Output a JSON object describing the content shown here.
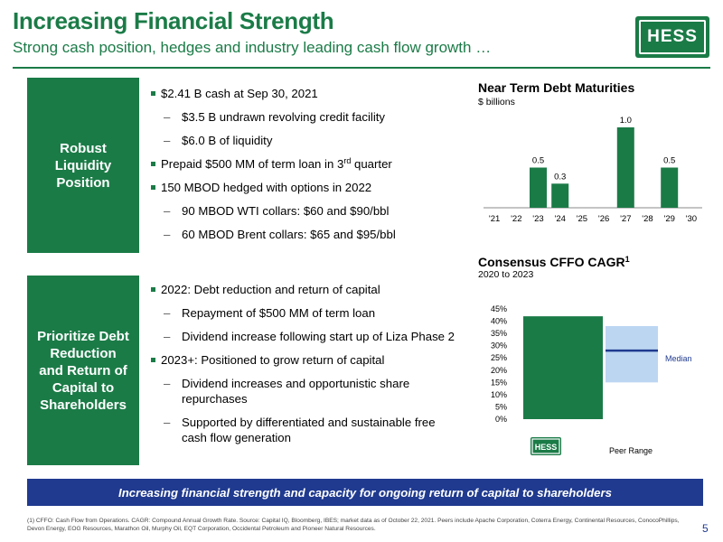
{
  "header": {
    "title": "Increasing Financial Strength",
    "subtitle": "Strong cash position, hedges and industry leading cash flow growth …",
    "logo_text": "HESS"
  },
  "section1": {
    "label": "Robust\nLiquidity\nPosition",
    "bullets": [
      {
        "level": 1,
        "text": "$2.41 B cash at Sep 30, 2021"
      },
      {
        "level": 2,
        "text": "$3.5 B undrawn revolving credit facility"
      },
      {
        "level": 2,
        "text": "$6.0 B of liquidity"
      },
      {
        "level": 1,
        "text_pre": "Prepaid $500 MM of term loan in 3",
        "sup": "rd",
        "text_post": " quarter"
      },
      {
        "level": 1,
        "text": "150 MBOD hedged with options in 2022"
      },
      {
        "level": 2,
        "text": "90 MBOD WTI collars: $60 and $90/bbl"
      },
      {
        "level": 2,
        "text": "60 MBOD Brent collars: $65 and $95/bbl"
      }
    ]
  },
  "section2": {
    "label": "Prioritize Debt\nReduction\nand Return of\nCapital to\nShareholders",
    "bullets": [
      {
        "level": 1,
        "text": "2022:  Debt reduction and return of capital"
      },
      {
        "level": 2,
        "text": "Repayment of $500 MM of term loan"
      },
      {
        "level": 2,
        "text": "Dividend increase following start up of Liza Phase 2"
      },
      {
        "level": 1,
        "text": "2023+:  Positioned to grow return of capital"
      },
      {
        "level": 2,
        "text": "Dividend increases and opportunistic share repurchases"
      },
      {
        "level": 2,
        "text": "Supported by differentiated and sustainable free cash flow generation"
      }
    ]
  },
  "chart_data": [
    {
      "type": "bar",
      "title": "Near Term Debt Maturities",
      "subtitle": "$ billions",
      "categories": [
        "'21",
        "'22",
        "'23",
        "'24",
        "'25",
        "'26",
        "'27",
        "'28",
        "'29",
        "'30"
      ],
      "values": [
        0,
        0,
        0.5,
        0.3,
        0,
        0,
        1.0,
        0,
        0.5,
        0
      ],
      "labels": [
        "",
        "",
        "0.5",
        "0.3",
        "",
        "",
        "1.0",
        "",
        "0.5",
        ""
      ],
      "ylim": [
        0,
        1.0
      ],
      "bar_color": "#1b7b47"
    },
    {
      "type": "bar",
      "title": "Consensus CFFO CAGR",
      "title_sup": "1",
      "subtitle": "2020 to 2023",
      "yticks": [
        "0%",
        "5%",
        "10%",
        "15%",
        "20%",
        "25%",
        "30%",
        "35%",
        "40%",
        "45%"
      ],
      "ylim": [
        0,
        45
      ],
      "hess_value": 42,
      "hess_label": "HESS",
      "peer_range": [
        15,
        38
      ],
      "peer_median": 28,
      "peer_label": "Peer Range",
      "median_label": "Median",
      "bar_color": "#1b7b47",
      "range_color": "#bcd6f2",
      "median_color": "#1f3a8f"
    }
  ],
  "banner": "Increasing financial strength and capacity for ongoing return of capital to shareholders",
  "footnote": "(1) CFFO: Cash Flow from Operations. CAGR: Compound Annual Growth Rate. Source: Capital IQ, Bloomberg, IBES; market data as of October 22, 2021. Peers include Apache Corporation, Coterra Energy, Continental Resources, ConocoPhillips, Devon Energy, EOG Resources, Marathon Oil, Murphy Oil, EQT Corporation, Occidental Petroleum and Pioneer Natural Resources.",
  "page_number": "5"
}
